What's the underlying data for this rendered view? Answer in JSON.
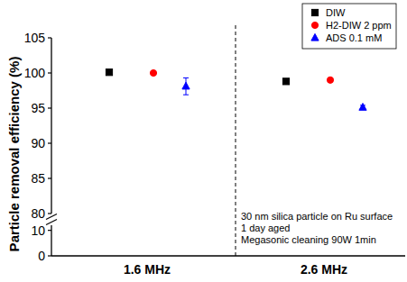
{
  "chart_data": {
    "type": "scatter",
    "y_label": "Particle removal efficiency (%)",
    "categories": [
      "1.6 MHz",
      "2.6 MHz"
    ],
    "series": [
      {
        "name": "DIW",
        "color": "#000000",
        "marker": "square",
        "values": [
          100.1,
          98.8
        ]
      },
      {
        "name": "H2-DIW 2 ppm",
        "color": "#ff0000",
        "marker": "circle",
        "values": [
          100.0,
          99.0
        ]
      },
      {
        "name": "ADS 0.1 mM",
        "color": "#0000ff",
        "marker": "triangle",
        "values": [
          98.1,
          95.1
        ],
        "errors": [
          1.2,
          0.3
        ]
      }
    ],
    "ylim": [
      0,
      105
    ],
    "yticks": [
      0,
      10,
      80,
      85,
      90,
      95,
      100,
      105
    ],
    "legend": "upper right",
    "grid": false,
    "annotations": [
      "30 nm silica particle on Ru surface",
      "1 day aged",
      "Megasonic cleaning 90W 1min"
    ]
  }
}
